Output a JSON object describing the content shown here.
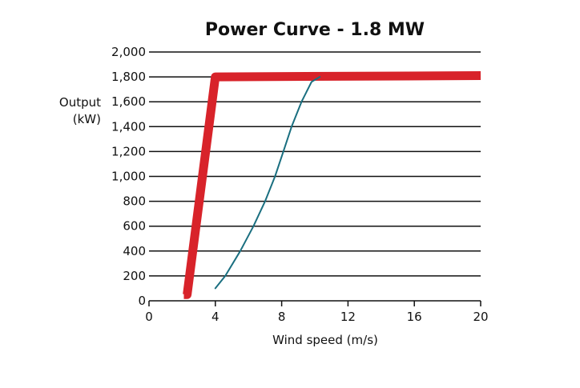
{
  "chart_data": {
    "type": "line",
    "title": "Power Curve - 1.8 MW",
    "xlabel": "Wind speed (m/s)",
    "ylabel_lines": [
      "Output",
      "(kW)"
    ],
    "xlim": [
      0,
      20
    ],
    "ylim": [
      0,
      2000
    ],
    "xticks": [
      "0",
      "4",
      "8",
      "12",
      "16",
      "20"
    ],
    "yticks": [
      "0",
      "200",
      "400",
      "600",
      "800",
      "1,000",
      "1,200",
      "1,400",
      "1,600",
      "1,800",
      "2,000"
    ],
    "grid": "horizontal",
    "series": [
      {
        "color": "#d8232a",
        "points": [
          [
            2.1,
            50
          ],
          [
            2.3,
            50
          ],
          [
            4.0,
            1800
          ],
          [
            20.0,
            1810
          ]
        ]
      },
      {
        "color": "#1a6f80",
        "points": [
          [
            4.0,
            100
          ],
          [
            4.6,
            200
          ],
          [
            5.5,
            400
          ],
          [
            6.3,
            600
          ],
          [
            7.0,
            800
          ],
          [
            7.6,
            1000
          ],
          [
            8.1,
            1200
          ],
          [
            8.6,
            1400
          ],
          [
            9.2,
            1600
          ],
          [
            9.8,
            1760
          ],
          [
            10.3,
            1800
          ]
        ]
      }
    ]
  }
}
